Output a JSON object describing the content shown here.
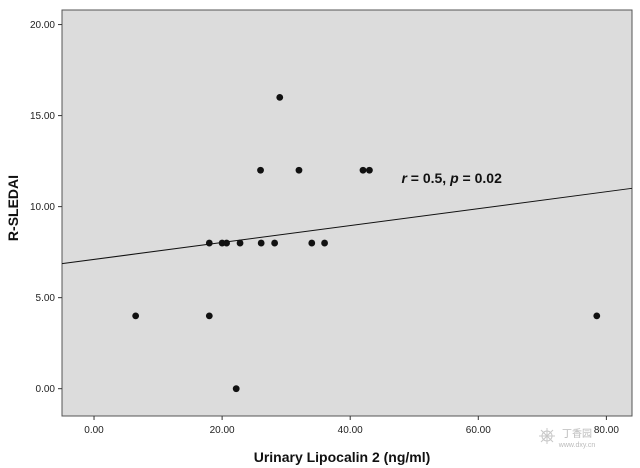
{
  "chart_data": {
    "type": "scatter",
    "title": "",
    "xlabel": "Urinary Lipocalin 2 (ng/ml)",
    "ylabel": "R-SLEDAI",
    "xlim": [
      -5,
      84
    ],
    "ylim": [
      -1.5,
      20.8
    ],
    "x_ticks": [
      "0.00",
      "20.00",
      "40.00",
      "60.00",
      "80.00"
    ],
    "y_ticks": [
      "0.00",
      "5.00",
      "10.00",
      "15.00",
      "20.00"
    ],
    "grid": false,
    "points": [
      {
        "x": 6.5,
        "y": 4
      },
      {
        "x": 18.0,
        "y": 4
      },
      {
        "x": 18.0,
        "y": 8
      },
      {
        "x": 20.0,
        "y": 8
      },
      {
        "x": 20.7,
        "y": 8
      },
      {
        "x": 22.2,
        "y": 0
      },
      {
        "x": 22.8,
        "y": 8
      },
      {
        "x": 26.0,
        "y": 12
      },
      {
        "x": 26.1,
        "y": 8
      },
      {
        "x": 28.2,
        "y": 8
      },
      {
        "x": 29.0,
        "y": 16
      },
      {
        "x": 32.0,
        "y": 12
      },
      {
        "x": 34.0,
        "y": 8
      },
      {
        "x": 36.0,
        "y": 8
      },
      {
        "x": 42.0,
        "y": 12
      },
      {
        "x": 43.0,
        "y": 12
      },
      {
        "x": 78.5,
        "y": 4
      }
    ],
    "regression_line": {
      "intercept": 7.1,
      "slope": 0.0465
    },
    "annotation": {
      "r_label": "r",
      "r_value": " = 0.5, ",
      "p_label": "p",
      "p_value": " = 0.02",
      "x": 48,
      "y": 11.3
    },
    "colors": {
      "plot_background": "#dcdcdc",
      "points": "#111111",
      "line": "#111111"
    }
  },
  "watermark": {
    "text": "丁香园",
    "url": "www.dxy.cn"
  }
}
